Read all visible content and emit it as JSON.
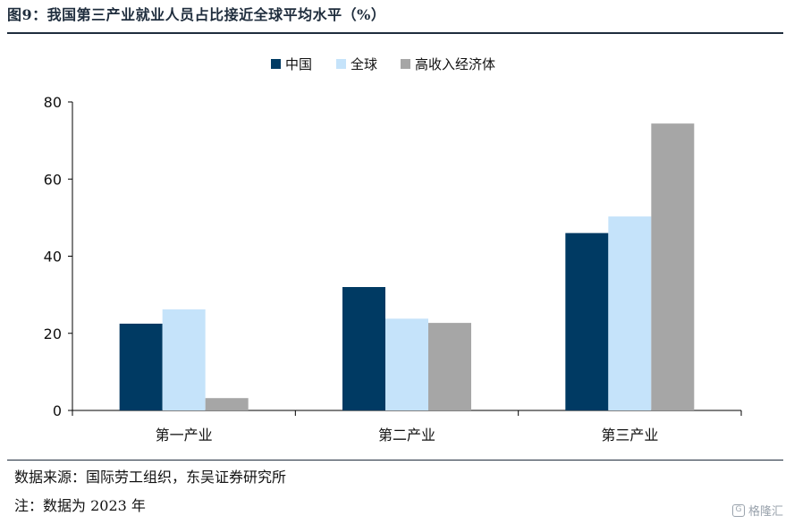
{
  "title": "图9：我国第三产业就业人员占比接近全球平均水平（%）",
  "source": "数据来源：国际劳工组织，东吴证券研究所",
  "note": "注：数据为 2023 年",
  "watermark": "格隆汇",
  "chart_data": {
    "type": "bar",
    "categories": [
      "第一产业",
      "第二产业",
      "第三产业"
    ],
    "series": [
      {
        "name": "中国",
        "color": "#003a63",
        "values": [
          22.5,
          32,
          46
        ]
      },
      {
        "name": "全球",
        "color": "#c5e3fa",
        "values": [
          26.2,
          23.8,
          50.3
        ]
      },
      {
        "name": "高收入经济体",
        "color": "#a6a6a6",
        "values": [
          3.2,
          22.7,
          74.4
        ]
      }
    ],
    "ylim": [
      0,
      80
    ],
    "yticks": [
      0,
      20,
      40,
      60,
      80
    ],
    "legend_position": "top-center",
    "grid": false
  }
}
